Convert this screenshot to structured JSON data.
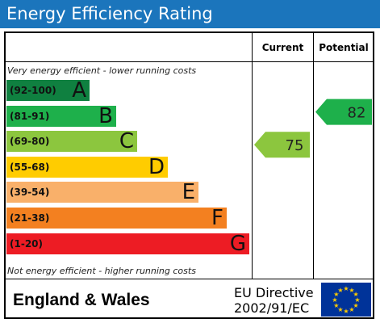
{
  "title": "Energy Efficiency Rating",
  "columns": {
    "current": "Current",
    "potential": "Potential"
  },
  "notes": {
    "top": "Very energy efficient - lower running costs",
    "bottom": "Not energy efficient - higher running costs"
  },
  "footer": {
    "country": "England & Wales",
    "directive_line1": "EU Directive",
    "directive_line2": "2002/91/EC"
  },
  "chart_data": {
    "type": "bar",
    "title": "Energy Efficiency Rating",
    "bands": [
      {
        "range": "(92-100)",
        "letter": "A",
        "color": "#0f8040"
      },
      {
        "range": "(81-91)",
        "letter": "B",
        "color": "#1eb04b"
      },
      {
        "range": "(69-80)",
        "letter": "C",
        "color": "#8cc63e"
      },
      {
        "range": "(55-68)",
        "letter": "D",
        "color": "#ffcc00"
      },
      {
        "range": "(39-54)",
        "letter": "E",
        "color": "#f9b06a"
      },
      {
        "range": "(21-38)",
        "letter": "F",
        "color": "#f38020"
      },
      {
        "range": "(1-20)",
        "letter": "G",
        "color": "#ed1c24"
      }
    ],
    "current": {
      "value": 75,
      "band": "C",
      "color": "#8cc63e"
    },
    "potential": {
      "value": 82,
      "band": "B",
      "color": "#1eb04b"
    }
  }
}
